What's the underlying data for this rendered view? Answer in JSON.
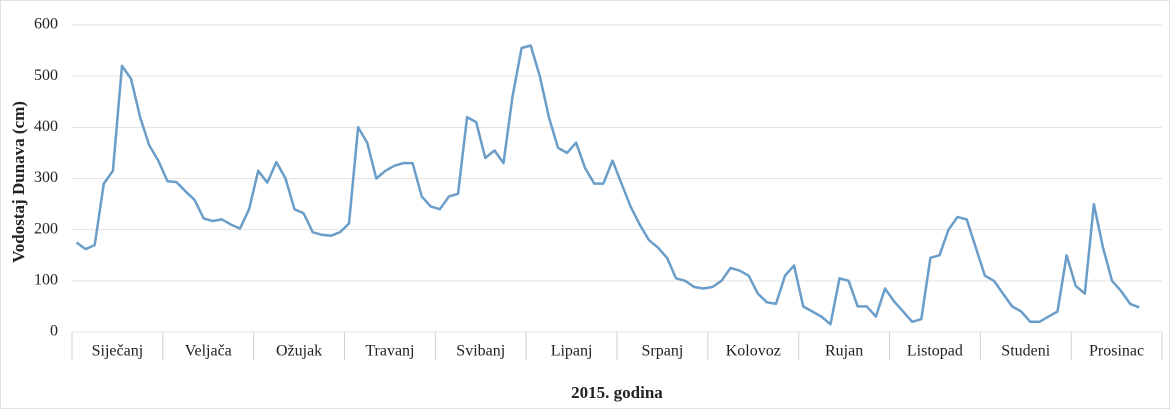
{
  "chart_data": {
    "type": "line",
    "y_label": "Vodostaj Dunava (cm)",
    "x_label": "2015. godina",
    "categories": [
      null,
      null,
      null,
      null,
      null,
      "Siječanj",
      null,
      null,
      null,
      null,
      null,
      null,
      null,
      null,
      null,
      "Veljača",
      null,
      null,
      null,
      null,
      null,
      null,
      null,
      null,
      null,
      "Ožujak",
      null,
      null,
      null,
      null,
      null,
      null,
      null,
      null,
      null,
      "Travanj",
      null,
      null,
      null,
      null,
      null,
      null,
      null,
      null,
      null,
      "Svibanj",
      null,
      null,
      null,
      null,
      null,
      null,
      null,
      null,
      null,
      "Lipanj",
      null,
      null,
      null,
      null,
      null,
      null,
      null,
      null,
      null,
      "Srpanj",
      null,
      null,
      null,
      null,
      null,
      null,
      null,
      null,
      null,
      "Kolovoz",
      null,
      null,
      null,
      null,
      null,
      null,
      null,
      null,
      null,
      "Rujan",
      null,
      null,
      null,
      null,
      null,
      null,
      null,
      null,
      null,
      "Listopad",
      null,
      null,
      null,
      null,
      null,
      null,
      null,
      null,
      null,
      "Studeni",
      null,
      null,
      null,
      null,
      null,
      null,
      null,
      null,
      null,
      "Prosinac",
      null,
      null,
      null,
      null
    ],
    "series": [
      {
        "name": "Vodostaj",
        "color": "#6a9ec9",
        "values": [
          175,
          162,
          170,
          290,
          315,
          520,
          495,
          420,
          365,
          335,
          295,
          293,
          275,
          258,
          222,
          217,
          220,
          210,
          202,
          240,
          315,
          292,
          332,
          300,
          240,
          232,
          195,
          190,
          188,
          195,
          212,
          400,
          370,
          300,
          315,
          325,
          330,
          330,
          265,
          245,
          240,
          265,
          270,
          420,
          410,
          340,
          355,
          330,
          460,
          555,
          560,
          500,
          420,
          360,
          350,
          370,
          320,
          290,
          290,
          335,
          290,
          245,
          210,
          180,
          165,
          145,
          105,
          100,
          88,
          85,
          88,
          100,
          125,
          120,
          110,
          75,
          58,
          55,
          110,
          130,
          50,
          40,
          30,
          15,
          105,
          100,
          50,
          50,
          30,
          85,
          60,
          40,
          20,
          25,
          145,
          150,
          200,
          225,
          220,
          165,
          110,
          100,
          75,
          50,
          40,
          20,
          20,
          30,
          40,
          150,
          90,
          75,
          250,
          165,
          100,
          80,
          55,
          48,
          null,
          35
        ]
      }
    ],
    "ylim": [
      0,
      600
    ],
    "yticks": [
      0,
      100,
      200,
      300,
      400,
      500,
      600
    ],
    "grid": true
  }
}
